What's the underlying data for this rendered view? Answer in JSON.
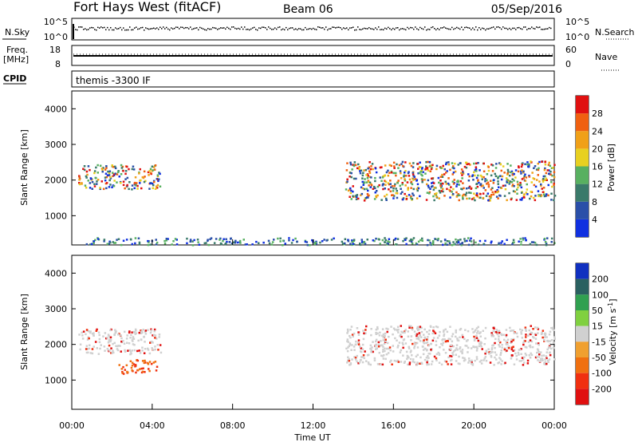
{
  "header": {
    "station": "Fort Hays West (fitACF)",
    "beam": "Beam 06",
    "date": "05/Sep/2016"
  },
  "top_panels": {
    "nsky_label": "N.Sky",
    "nsky_ticks": [
      "10^5",
      "10^0"
    ],
    "nsearch_label": "N.Search",
    "nsearch_ticks": [
      "10^5",
      "10^0"
    ],
    "freq_label_line1": "Freq.",
    "freq_label_line2": "[MHz]",
    "freq_ticks": [
      "18",
      "8"
    ],
    "nave_label": "Nave",
    "nave_ticks": [
      "60",
      "0"
    ],
    "cpid_label": "CPID",
    "cpid_value": "themis -3300 IF"
  },
  "x_axis": {
    "ticks": [
      "00:00",
      "04:00",
      "08:00",
      "12:00",
      "16:00",
      "20:00",
      "00:00"
    ],
    "label": "Time UT"
  },
  "chart_data": [
    {
      "type": "heatmap",
      "quantity": "power",
      "ylabel": "Slant Range [km]",
      "yticks": [
        "1000",
        "2000",
        "3000",
        "4000"
      ],
      "ylim_km": [
        180,
        4500
      ],
      "xlim_hours": [
        0,
        24
      ],
      "colorbar_label": "Power [dB]",
      "colorbar_ticks": [
        "4",
        "8",
        "12",
        "16",
        "20",
        "24",
        "28"
      ],
      "colorbar_colors": [
        "#1030e0",
        "#2a4fa8",
        "#3a7a6a",
        "#58b060",
        "#e8d020",
        "#f0a018",
        "#f06010",
        "#e01010"
      ],
      "echo_regions": [
        {
          "t_start": 0.3,
          "t_end": 4.4,
          "range_start_km": 1750,
          "range_end_km": 2450
        },
        {
          "t_start": 13.6,
          "t_end": 24.0,
          "range_start_km": 1450,
          "range_end_km": 2550
        },
        {
          "t_start": 0.5,
          "t_end": 24.0,
          "range_start_km": 200,
          "range_end_km": 400
        }
      ]
    },
    {
      "type": "heatmap",
      "quantity": "velocity",
      "ylabel": "Slant Range [km]",
      "yticks": [
        "1000",
        "2000",
        "3000",
        "4000"
      ],
      "ylim_km": [
        180,
        4500
      ],
      "xlim_hours": [
        0,
        24
      ],
      "colorbar_label": "Velocity [m s",
      "colorbar_label_sup": "-1",
      "colorbar_label_end": "]",
      "colorbar_ticks": [
        "200",
        "100",
        "50",
        "15",
        "-15",
        "-50",
        "-100",
        "-200"
      ],
      "colorbar_colors": [
        "#1030c0",
        "#2a6060",
        "#30a050",
        "#80d040",
        "#d0d0d0",
        "#f0a030",
        "#f07010",
        "#f03010",
        "#e01010"
      ],
      "echo_regions": [
        {
          "t_start": 0.3,
          "t_end": 4.4,
          "range_start_km": 1750,
          "range_end_km": 2450
        },
        {
          "t_start": 13.6,
          "t_end": 24.0,
          "range_start_km": 1450,
          "range_end_km": 2550
        },
        {
          "t_start": 2.3,
          "t_end": 4.2,
          "range_start_km": 1200,
          "range_end_km": 1600
        }
      ]
    }
  ]
}
